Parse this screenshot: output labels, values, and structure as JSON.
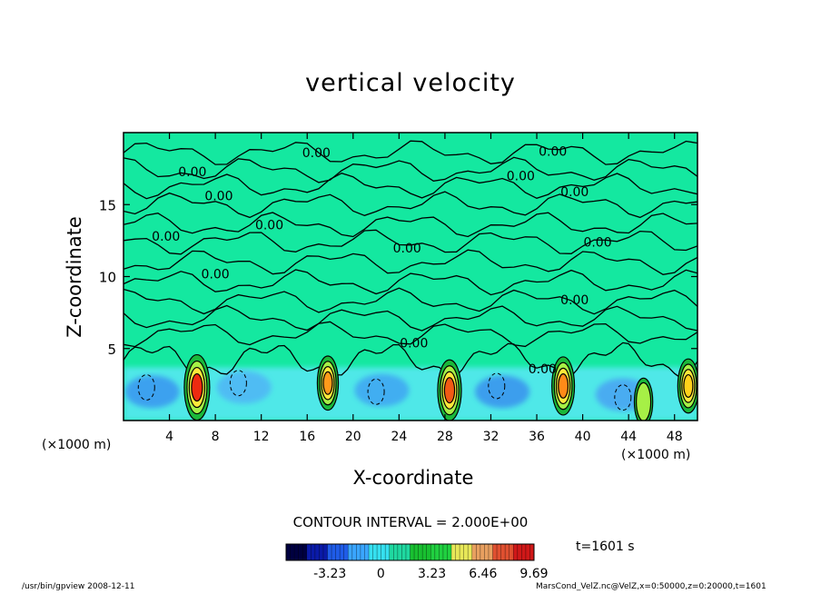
{
  "chart_data": {
    "type": "heatmap",
    "title": "vertical velocity",
    "xlabel": "X-coordinate",
    "ylabel": "Z-coordinate",
    "x_unit_label": "(×1000 m)",
    "xlim": [
      0,
      50
    ],
    "ylim": [
      0,
      20
    ],
    "x_ticks": [
      4,
      8,
      12,
      16,
      20,
      24,
      28,
      32,
      36,
      40,
      44,
      48
    ],
    "y_ticks": [
      5,
      10,
      15
    ],
    "contour_interval_label": "CONTOUR INTERVAL = 2.000E+00",
    "contour_label_text": "0.00",
    "contour_labels": [
      {
        "x": 16.8,
        "z": 18.6
      },
      {
        "x": 6.0,
        "z": 17.3
      },
      {
        "x": 37.4,
        "z": 18.7
      },
      {
        "x": 34.6,
        "z": 17.0
      },
      {
        "x": 8.3,
        "z": 15.6
      },
      {
        "x": 39.3,
        "z": 15.9
      },
      {
        "x": 12.7,
        "z": 13.6
      },
      {
        "x": 3.7,
        "z": 12.8
      },
      {
        "x": 24.7,
        "z": 12.0
      },
      {
        "x": 41.3,
        "z": 12.4
      },
      {
        "x": 8.0,
        "z": 10.2
      },
      {
        "x": 39.3,
        "z": 8.4
      },
      {
        "x": 25.3,
        "z": 5.4
      },
      {
        "x": 36.5,
        "z": 3.6
      }
    ],
    "updrafts": [
      {
        "x": 6.4,
        "z": 2.3,
        "peak": 9.69,
        "color": "#ee2a10"
      },
      {
        "x": 17.8,
        "z": 2.6,
        "peak": 5.5,
        "color": "#ff9a1a"
      },
      {
        "x": 28.4,
        "z": 2.1,
        "peak": 8.0,
        "color": "#f25a14"
      },
      {
        "x": 38.3,
        "z": 2.4,
        "peak": 7.0,
        "color": "#ff8a18"
      },
      {
        "x": 45.3,
        "z": 1.3,
        "peak": 3.0,
        "color": "#a8f020"
      },
      {
        "x": 49.2,
        "z": 2.4,
        "peak": 5.5,
        "color": "#ffd11a"
      }
    ],
    "colorbar": {
      "ticks": [
        "-3.23",
        "0",
        "3.23",
        "6.46",
        "9.69"
      ],
      "range": [
        -6.0,
        9.69
      ],
      "colors": [
        "#000040",
        "#0a1aa8",
        "#1f5ce8",
        "#3aa6ff",
        "#35e0f0",
        "#1fd8a0",
        "#18c030",
        "#20d040",
        "#e8e858",
        "#e8a060",
        "#e05030",
        "#d01818"
      ]
    },
    "background_color": "#14e8a0",
    "grid": false,
    "legend": "none"
  },
  "time_label": "t=1601 s",
  "footer": {
    "left": "/usr/bin/gpview   2008-12-11",
    "right": "MarsCond_VelZ.nc@VelZ,x=0:50000,z=0:20000,t=1601"
  }
}
